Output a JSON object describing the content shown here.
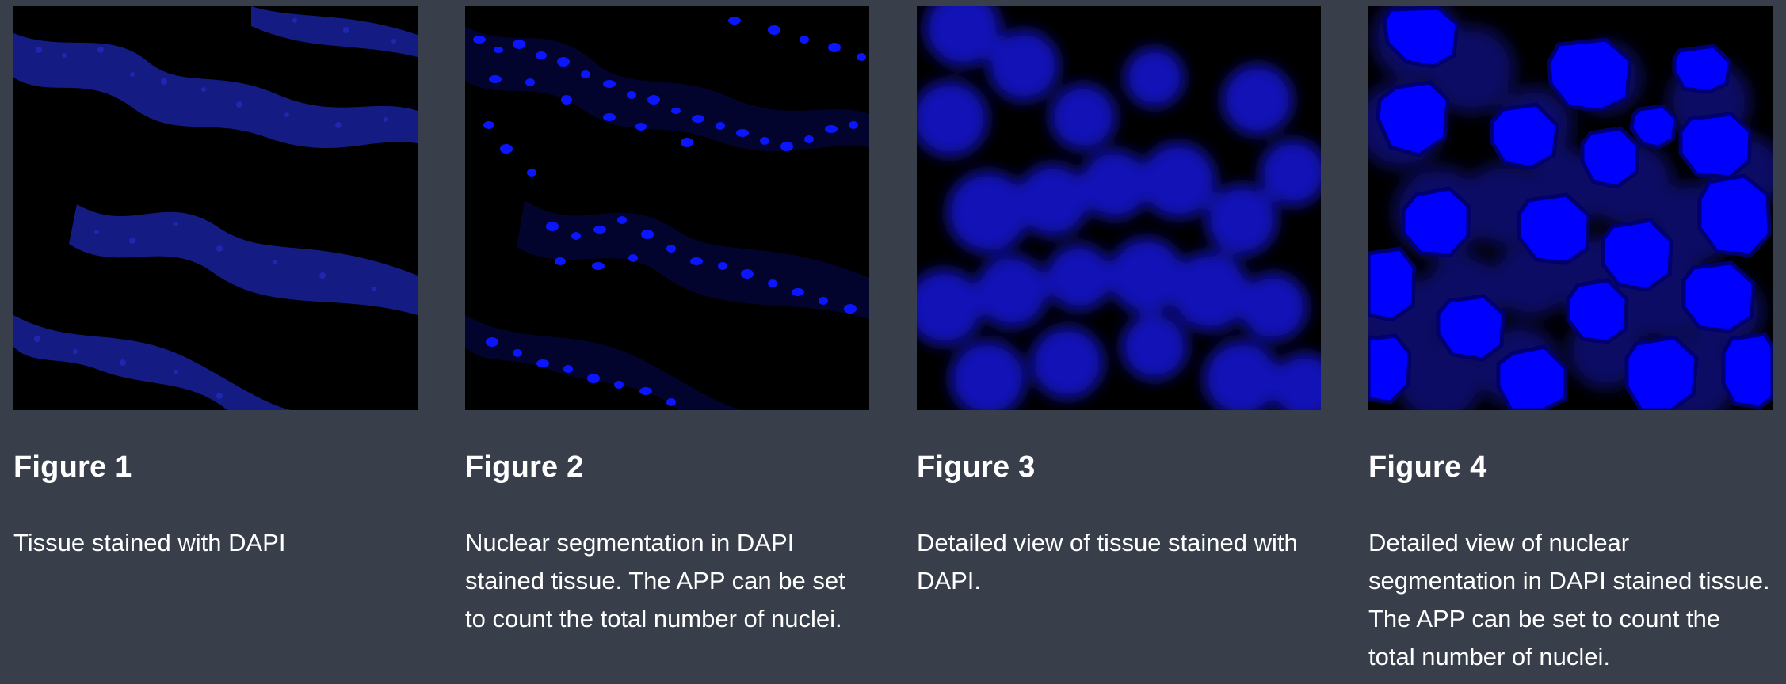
{
  "figures": [
    {
      "title": "Figure 1",
      "caption": "Tissue stained with DAPI",
      "image_icon": "dapi-tissue-image",
      "color": "#1f22a8"
    },
    {
      "title": "Figure 2",
      "caption": "Nuclear segmentation in DAPI stained tissue. The APP can be set to count the total number of nuclei.",
      "image_icon": "nuclear-segmentation-image",
      "color": "#0b16ff"
    },
    {
      "title": "Figure 3",
      "caption": "Detailed view of tissue stained with DAPI.",
      "image_icon": "dapi-detail-image",
      "color": "#1616e0"
    },
    {
      "title": "Figure 4",
      "caption": "Detailed view of nuclear segmentation in DAPI stained tissue. The APP can be set to count the total number of nuclei.",
      "image_icon": "segmentation-detail-image",
      "color": "#0000ff"
    }
  ],
  "colors": {
    "background": "#383f4b",
    "image_background": "#000000",
    "text": "#ffffff"
  }
}
